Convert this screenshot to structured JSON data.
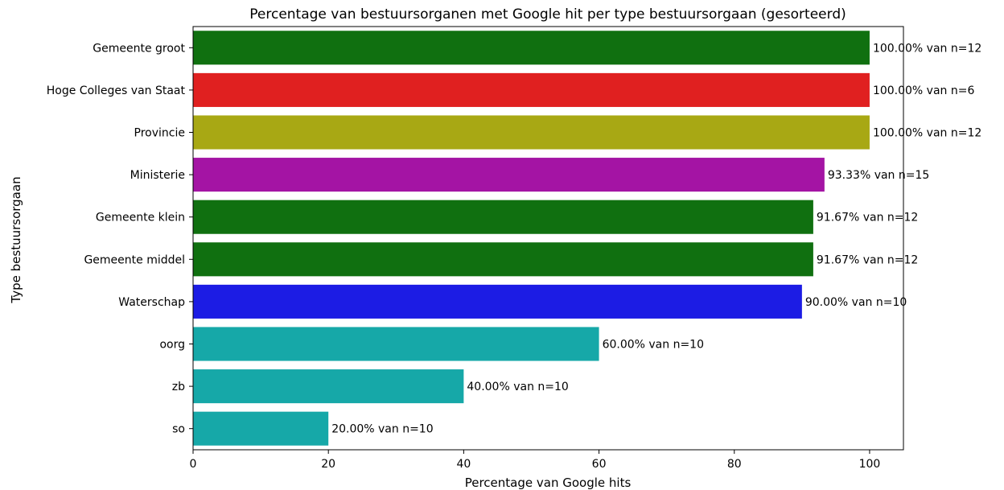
{
  "chart_data": {
    "type": "bar",
    "orientation": "horizontal",
    "title": "Percentage van bestuursorganen met Google hit per type bestuursorgaan (gesorteerd)",
    "xlabel": "Percentage van Google hits",
    "ylabel": "Type bestuursorgaan",
    "xlim": [
      0,
      105
    ],
    "x_ticks": [
      0,
      20,
      40,
      60,
      80,
      100
    ],
    "grid": false,
    "categories": [
      "Gemeente groot",
      "Hoge Colleges van Staat",
      "Provincie",
      "Ministerie",
      "Gemeente klein",
      "Gemeente middel",
      "Waterschap",
      "oorg",
      "zb",
      "so"
    ],
    "values": [
      100.0,
      100.0,
      100.0,
      93.33,
      91.67,
      91.67,
      90.0,
      60.0,
      40.0,
      20.0
    ],
    "bar_labels": [
      "100.00% van n=12",
      "100.00% van n=6",
      "100.00% van n=12",
      "93.33% van n=15",
      "91.67% van n=12",
      "91.67% van n=12",
      "90.00% van n=10",
      "60.00% van n=10",
      "40.00% van n=10",
      "20.00% van n=10"
    ],
    "colors": [
      "#107010",
      "#e02020",
      "#a8a814",
      "#a414a4",
      "#107010",
      "#107010",
      "#1c1ce4",
      "#16a8a8",
      "#16a8a8",
      "#16a8a8"
    ]
  }
}
